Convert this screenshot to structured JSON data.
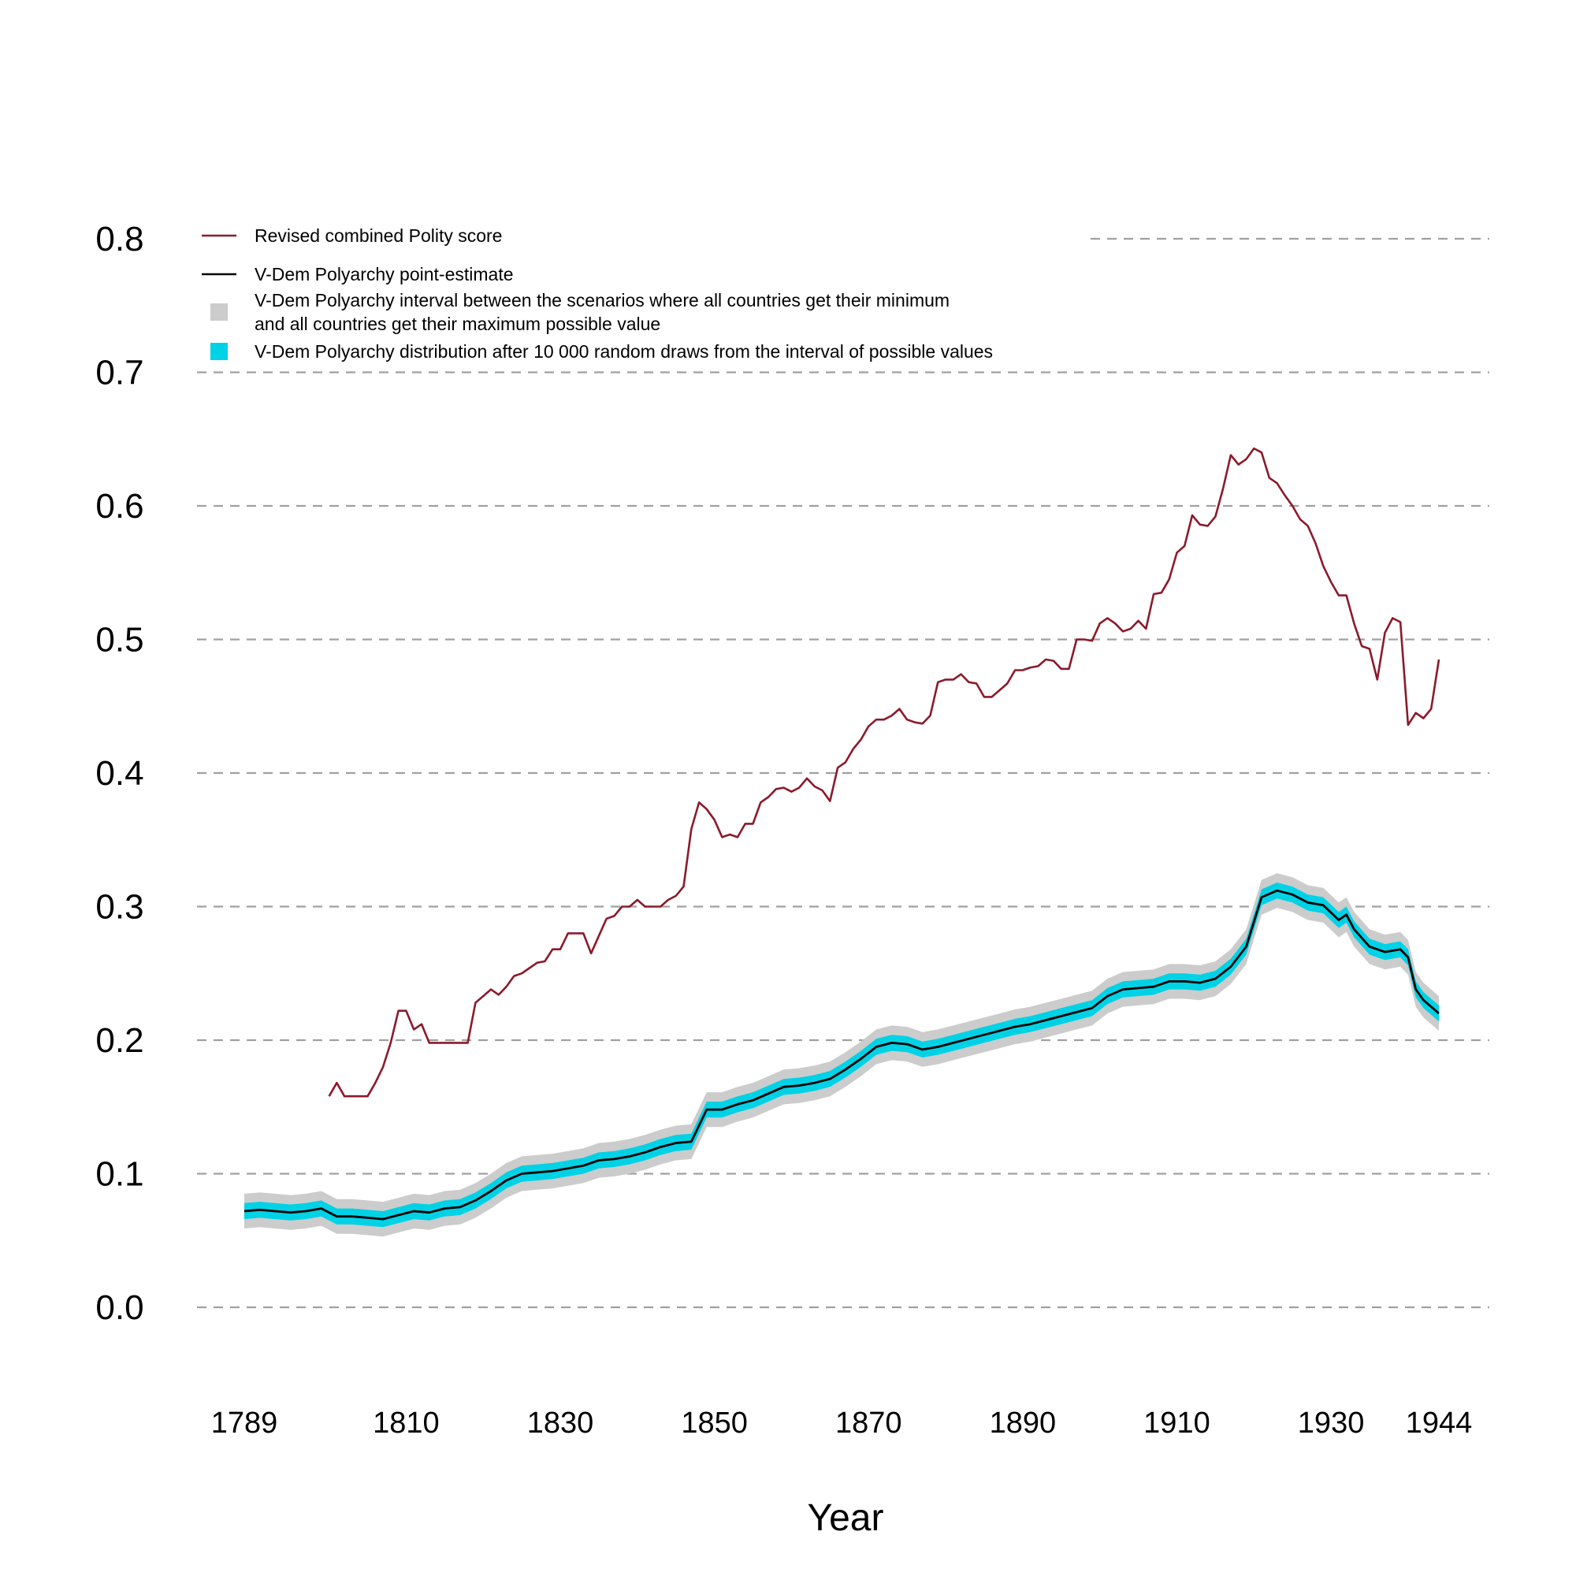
{
  "chart_data": {
    "type": "line",
    "title": "",
    "xlabel": "Year",
    "ylabel": "",
    "xlim": [
      1783,
      1952
    ],
    "ylim": [
      -0.05,
      0.85
    ],
    "x_ticks": [
      1789,
      1810,
      1830,
      1850,
      1870,
      1890,
      1910,
      1930,
      1944
    ],
    "y_ticks": [
      0.0,
      0.1,
      0.2,
      0.3,
      0.4,
      0.5,
      0.6,
      0.7,
      0.8
    ],
    "y_tick_labels": [
      "0.0",
      "0.1",
      "0.2",
      "0.3",
      "0.4",
      "0.5",
      "0.6",
      "0.7",
      "0.8"
    ],
    "grid": "horizontal dashed",
    "legend_position": "top-left",
    "colors": {
      "polity": "#8b1a2b",
      "vdem": "#000000",
      "interval": "#cccccc",
      "distribution": "#00d2e6",
      "grid": "#a0a0a0"
    },
    "legend": [
      {
        "key": "polity",
        "kind": "line",
        "label": "Revised combined Polity score"
      },
      {
        "key": "vdem",
        "kind": "line",
        "label": "V-Dem Polyarchy point-estimate"
      },
      {
        "key": "interval",
        "kind": "box",
        "label": "V-Dem Polyarchy interval between the scenarios where all countries get their minimum",
        "label2": "and all countries get their maximum possible value"
      },
      {
        "key": "distribution",
        "kind": "box",
        "label": "V-Dem Polyarchy distribution after 10 000 random draws from the interval of possible values"
      }
    ],
    "series": [
      {
        "key": "polity",
        "x": [
          1800,
          1801,
          1802,
          1803,
          1804,
          1805,
          1806,
          1807,
          1808,
          1809,
          1810,
          1811,
          1812,
          1813,
          1814,
          1815,
          1816,
          1817,
          1818,
          1819,
          1820,
          1821,
          1822,
          1823,
          1824,
          1825,
          1826,
          1827,
          1828,
          1829,
          1830,
          1831,
          1832,
          1833,
          1834,
          1835,
          1836,
          1837,
          1838,
          1839,
          1840,
          1841,
          1842,
          1843,
          1844,
          1845,
          1846,
          1847,
          1848,
          1849,
          1850,
          1851,
          1852,
          1853,
          1854,
          1855,
          1856,
          1857,
          1858,
          1859,
          1860,
          1861,
          1862,
          1863,
          1864,
          1865,
          1866,
          1867,
          1868,
          1869,
          1870,
          1871,
          1872,
          1873,
          1874,
          1875,
          1876,
          1877,
          1878,
          1879,
          1880,
          1881,
          1882,
          1883,
          1884,
          1885,
          1886,
          1887,
          1888,
          1889,
          1890,
          1891,
          1892,
          1893,
          1894,
          1895,
          1896,
          1897,
          1898,
          1899,
          1900,
          1901,
          1902,
          1903,
          1904,
          1905,
          1906,
          1907,
          1908,
          1909,
          1910,
          1911,
          1912,
          1913,
          1914,
          1915,
          1916,
          1917,
          1918,
          1919,
          1920,
          1921,
          1922,
          1923,
          1924,
          1925,
          1926,
          1927,
          1928,
          1929,
          1930,
          1931,
          1932,
          1933,
          1934,
          1935,
          1936,
          1937,
          1938,
          1939,
          1940,
          1941,
          1942,
          1943,
          1944
        ],
        "y": [
          0.158,
          0.168,
          0.158,
          0.158,
          0.158,
          0.158,
          0.168,
          0.18,
          0.198,
          0.222,
          0.222,
          0.208,
          0.212,
          0.198,
          0.198,
          0.198,
          0.198,
          0.198,
          0.198,
          0.228,
          0.233,
          0.238,
          0.234,
          0.24,
          0.248,
          0.25,
          0.254,
          0.258,
          0.259,
          0.268,
          0.268,
          0.28,
          0.28,
          0.28,
          0.265,
          0.278,
          0.291,
          0.293,
          0.3,
          0.3,
          0.305,
          0.3,
          0.3,
          0.3,
          0.305,
          0.308,
          0.315,
          0.358,
          0.378,
          0.373,
          0.365,
          0.352,
          0.354,
          0.352,
          0.362,
          0.362,
          0.378,
          0.382,
          0.388,
          0.389,
          0.386,
          0.389,
          0.396,
          0.39,
          0.387,
          0.379,
          0.404,
          0.408,
          0.418,
          0.425,
          0.435,
          0.44,
          0.44,
          0.443,
          0.448,
          0.44,
          0.438,
          0.437,
          0.443,
          0.468,
          0.47,
          0.47,
          0.474,
          0.468,
          0.467,
          0.457,
          0.457,
          0.462,
          0.467,
          0.477,
          0.477,
          0.479,
          0.48,
          0.485,
          0.484,
          0.478,
          0.478,
          0.5,
          0.5,
          0.499,
          0.512,
          0.516,
          0.512,
          0.506,
          0.508,
          0.514,
          0.508,
          0.534,
          0.535,
          0.545,
          0.565,
          0.57,
          0.593,
          0.586,
          0.585,
          0.592,
          0.613,
          0.638,
          0.631,
          0.635,
          0.643,
          0.64,
          0.621,
          0.617,
          0.608,
          0.6,
          0.59,
          0.585,
          0.572,
          0.555,
          0.543,
          0.533,
          0.533,
          0.512,
          0.495,
          0.493,
          0.47,
          0.505,
          0.516,
          0.513,
          0.436,
          0.445,
          0.441,
          0.448,
          0.485
        ]
      },
      {
        "key": "vdem",
        "x": [
          1789,
          1791,
          1793,
          1795,
          1797,
          1799,
          1801,
          1803,
          1805,
          1807,
          1809,
          1811,
          1813,
          1815,
          1817,
          1819,
          1821,
          1823,
          1825,
          1827,
          1829,
          1831,
          1833,
          1835,
          1837,
          1839,
          1841,
          1843,
          1845,
          1847,
          1849,
          1851,
          1853,
          1855,
          1857,
          1859,
          1861,
          1863,
          1865,
          1867,
          1869,
          1871,
          1873,
          1875,
          1877,
          1879,
          1881,
          1883,
          1885,
          1887,
          1889,
          1891,
          1893,
          1895,
          1897,
          1899,
          1901,
          1903,
          1905,
          1907,
          1909,
          1911,
          1913,
          1915,
          1917,
          1919,
          1921,
          1923,
          1925,
          1927,
          1929,
          1931,
          1932,
          1933,
          1935,
          1937,
          1939,
          1940,
          1941,
          1942,
          1943,
          1944
        ],
        "y": [
          0.072,
          0.073,
          0.072,
          0.071,
          0.072,
          0.074,
          0.068,
          0.068,
          0.067,
          0.066,
          0.069,
          0.072,
          0.071,
          0.074,
          0.075,
          0.08,
          0.087,
          0.095,
          0.1,
          0.101,
          0.102,
          0.104,
          0.106,
          0.11,
          0.111,
          0.113,
          0.116,
          0.12,
          0.123,
          0.124,
          0.148,
          0.148,
          0.152,
          0.155,
          0.16,
          0.165,
          0.166,
          0.168,
          0.171,
          0.178,
          0.186,
          0.195,
          0.198,
          0.197,
          0.193,
          0.195,
          0.198,
          0.201,
          0.204,
          0.207,
          0.21,
          0.212,
          0.215,
          0.218,
          0.221,
          0.224,
          0.233,
          0.238,
          0.239,
          0.24,
          0.244,
          0.244,
          0.243,
          0.246,
          0.255,
          0.27,
          0.307,
          0.312,
          0.309,
          0.303,
          0.301,
          0.29,
          0.294,
          0.283,
          0.27,
          0.266,
          0.268,
          0.262,
          0.238,
          0.23,
          0.225,
          0.22
        ]
      }
    ],
    "interval_band": {
      "key": "interval",
      "lower_offset": -0.013,
      "upper_offset": 0.013
    },
    "distribution_band": {
      "key": "distribution",
      "lower_offset": -0.006,
      "upper_offset": 0.006
    }
  }
}
